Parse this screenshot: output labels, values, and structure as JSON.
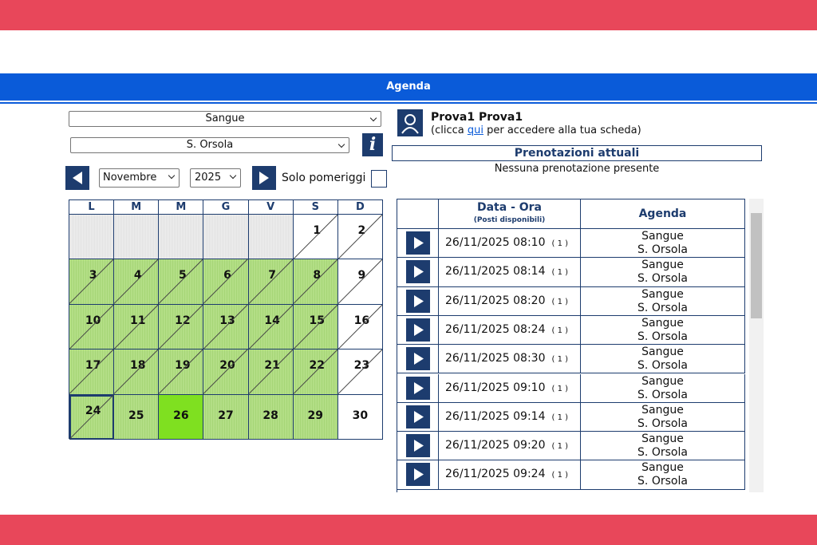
{
  "header": {
    "title": "Agenda"
  },
  "filters": {
    "service": "Sangue",
    "location": "S. Orsola",
    "month": "Novembre",
    "year": "2025",
    "afternoon_only": "Solo pomeriggi"
  },
  "user": {
    "name": "Prova1 Prova1",
    "hint_before": "(clicca ",
    "hint_link": "qui",
    "hint_after": " per accedere alla tua scheda)"
  },
  "bookings": {
    "title": "Prenotazioni attuali",
    "empty": "Nessuna prenotazione presente"
  },
  "calendar": {
    "weekdays": [
      "L",
      "M",
      "M",
      "G",
      "V",
      "S",
      "D"
    ],
    "weeks": [
      [
        null,
        null,
        null,
        null,
        null,
        "1",
        "2"
      ],
      [
        "3",
        "4",
        "5",
        "6",
        "7",
        "8",
        "9"
      ],
      [
        "10",
        "11",
        "12",
        "13",
        "14",
        "15",
        "16"
      ],
      [
        "17",
        "18",
        "19",
        "20",
        "21",
        "22",
        "23"
      ],
      [
        "24",
        "25",
        "26",
        "27",
        "28",
        "29",
        "30"
      ]
    ]
  },
  "slots": {
    "header": {
      "date": "Data - Ora",
      "date_sub": "(Posti disponibili)",
      "agenda": "Agenda"
    },
    "rows": [
      {
        "datetime": "26/11/2025 08:10",
        "seats": "( 1 )",
        "service": "Sangue",
        "location": "S. Orsola"
      },
      {
        "datetime": "26/11/2025 08:14",
        "seats": "( 1 )",
        "service": "Sangue",
        "location": "S. Orsola"
      },
      {
        "datetime": "26/11/2025 08:20",
        "seats": "( 1 )",
        "service": "Sangue",
        "location": "S. Orsola"
      },
      {
        "datetime": "26/11/2025 08:24",
        "seats": "( 1 )",
        "service": "Sangue",
        "location": "S. Orsola"
      },
      {
        "datetime": "26/11/2025 08:30",
        "seats": "( 1 )",
        "service": "Sangue",
        "location": "S. Orsola"
      },
      {
        "datetime": "26/11/2025 09:10",
        "seats": "( 1 )",
        "service": "Sangue",
        "location": "S. Orsola"
      },
      {
        "datetime": "26/11/2025 09:14",
        "seats": "( 1 )",
        "service": "Sangue",
        "location": "S. Orsola"
      },
      {
        "datetime": "26/11/2025 09:20",
        "seats": "( 1 )",
        "service": "Sangue",
        "location": "S. Orsola"
      },
      {
        "datetime": "26/11/2025 09:24",
        "seats": "( 1 )",
        "service": "Sangue",
        "location": "S. Orsola"
      }
    ]
  }
}
